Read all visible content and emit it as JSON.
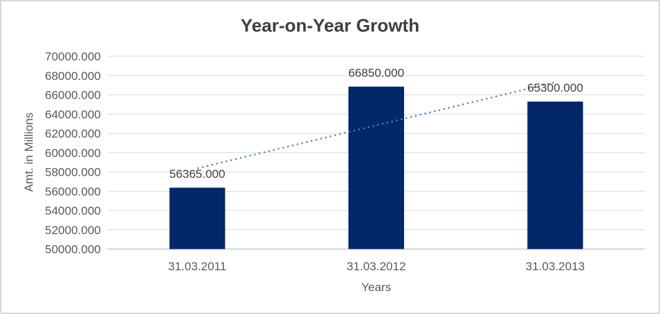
{
  "chart_data": {
    "type": "bar",
    "title": "Year-on-Year Growth",
    "xlabel": "Years",
    "ylabel": "Amt. in Millions",
    "categories": [
      "31.03.2011",
      "31.03.2012",
      "31.03.2013"
    ],
    "values": [
      56365,
      66850,
      65300
    ],
    "data_labels": [
      "56365.000",
      "66850.000",
      "65300.000"
    ],
    "ylim": [
      50000,
      70000
    ],
    "ytick_step": 2000,
    "ytick_labels": [
      "50000.000",
      "52000.000",
      "54000.000",
      "56000.000",
      "58000.000",
      "60000.000",
      "62000.000",
      "64000.000",
      "66000.000",
      "68000.000",
      "70000.000"
    ],
    "grid": true,
    "legend": "none",
    "trendline": {
      "type": "linear",
      "style": "dotted",
      "color": "#4e80c8"
    },
    "colors": {
      "bar": "#032769",
      "gridline": "#d9d9d9",
      "axis_line": "#c0c0c0",
      "title_text": "#3f3f3f",
      "tick_text": "#595959",
      "label_text": "#404040",
      "frame_border": "#d9d9d9",
      "background": "#ffffff"
    }
  }
}
